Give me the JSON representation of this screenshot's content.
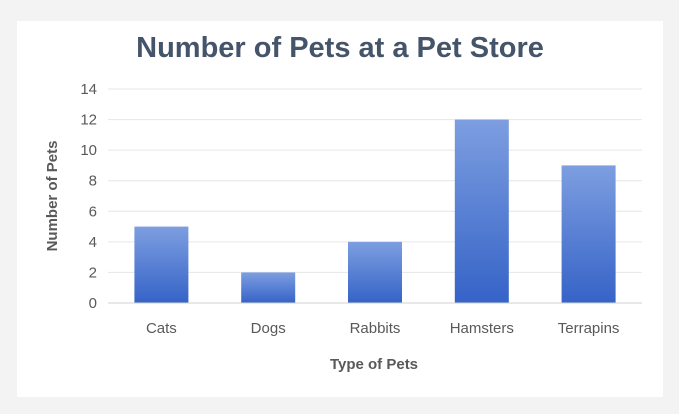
{
  "chart_data": {
    "type": "bar",
    "title": "Number of Pets at a Pet Store",
    "xlabel": "Type of Pets",
    "ylabel": "Number of Pets",
    "categories": [
      "Cats",
      "Dogs",
      "Rabbits",
      "Hamsters",
      "Terrapins"
    ],
    "values": [
      5,
      2,
      4,
      12,
      9
    ],
    "ylim": [
      0,
      14
    ],
    "yticks": [
      "0",
      "2",
      "4",
      "6",
      "8",
      "10",
      "12",
      "14"
    ],
    "grid": true,
    "legend": "none",
    "colors": {
      "bar_top": "#7d9ee0",
      "bar_bottom": "#3563c7",
      "title": "#44546a",
      "grid": "#e6e6e6",
      "text": "#595959"
    }
  }
}
